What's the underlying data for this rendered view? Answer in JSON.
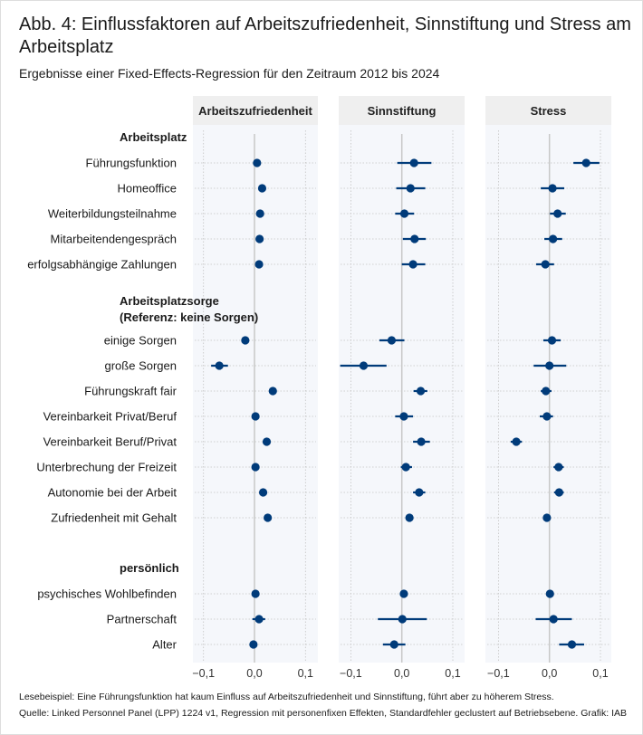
{
  "title": "Abb. 4: Einflussfaktoren auf Arbeitszufriedenheit, Sinnstiftung und Stress am Arbeitsplatz",
  "subtitle": "Ergebnisse einer Fixed-Effects-Regression für den Zeitraum 2012 bis 2024",
  "footer": {
    "example": "Lesebeispiel: Eine Führungsfunktion hat kaum Einfluss auf Arbeitszufriedenheit und Sinnstiftung, führt aber zu höherem Stress.",
    "source": "Quelle: Linked Personnel Panel (LPP) 1224 v1, Regression mit personenfixen Effekten, Standardfehler geclustert auf Betriebsebene. Grafik: IAB"
  },
  "colors": {
    "point": "#003b7a",
    "panel_bg": "#f5f7fb",
    "header_bg": "#efefef",
    "zero_line": "#c8c8c8"
  },
  "chart_data": {
    "type": "scatter",
    "subtype": "coefficient-plot",
    "xlim": [
      -0.12,
      0.125
    ],
    "xticks": [
      -0.1,
      0.0,
      0.1
    ],
    "xtick_labels": [
      "−0,1",
      "0,0",
      "0,1"
    ],
    "groups": [
      {
        "label": "Arbeitsplatz",
        "row": 0
      },
      {
        "label": "Arbeitsplatzsorge\n(Referenz: keine Sorgen)",
        "row": 6.5
      },
      {
        "label": "persönlich",
        "row": 17
      }
    ],
    "rows": [
      {
        "label": "Führungsfunktion",
        "row": 1
      },
      {
        "label": "Homeoffice",
        "row": 2
      },
      {
        "label": "Weiterbildungsteilnahme",
        "row": 3
      },
      {
        "label": "Mitarbeitendengespräch",
        "row": 4
      },
      {
        "label": "erfolgsabhängige Zahlungen",
        "row": 5
      },
      {
        "label": "einige Sorgen",
        "row": 8
      },
      {
        "label": "große Sorgen",
        "row": 9
      },
      {
        "label": "Führungskraft fair",
        "row": 10
      },
      {
        "label": "Vereinbarkeit Privat/Beruf",
        "row": 11
      },
      {
        "label": "Vereinbarkeit Beruf/Privat",
        "row": 12
      },
      {
        "label": "Unterbrechung der Freizeit",
        "row": 13
      },
      {
        "label": "Autonomie bei der Arbeit",
        "row": 14
      },
      {
        "label": "Zufriedenheit mit Gehalt",
        "row": 15
      },
      {
        "label": "psychisches Wohlbefinden",
        "row": 18
      },
      {
        "label": "Partnerschaft",
        "row": 19
      },
      {
        "label": "Alter",
        "row": 20
      }
    ],
    "series": [
      {
        "name": "Arbeitszufriedenheit",
        "estimates": [
          0.005,
          0.015,
          0.011,
          0.01,
          0.009,
          -0.018,
          -0.069,
          0.036,
          0.002,
          0.024,
          0.002,
          0.017,
          0.026,
          0.002,
          0.009,
          -0.002
        ],
        "ci_low": [
          0.002,
          0.011,
          0.008,
          0.007,
          0.006,
          -0.021,
          -0.085,
          0.033,
          -0.001,
          0.021,
          -0.001,
          0.014,
          0.023,
          -0.001,
          -0.004,
          -0.005
        ],
        "ci_high": [
          0.008,
          0.019,
          0.014,
          0.013,
          0.012,
          -0.015,
          -0.052,
          0.039,
          0.005,
          0.027,
          0.005,
          0.02,
          0.029,
          0.005,
          0.021,
          0.001
        ]
      },
      {
        "name": "Sinnstiftung",
        "estimates": [
          0.024,
          0.017,
          0.005,
          0.025,
          0.022,
          -0.02,
          -0.075,
          0.037,
          0.004,
          0.038,
          0.008,
          0.034,
          0.015,
          0.004,
          0.001,
          -0.015
        ],
        "ci_low": [
          -0.009,
          -0.011,
          -0.013,
          0.002,
          0.0,
          -0.044,
          -0.121,
          0.023,
          -0.013,
          0.022,
          -0.002,
          0.022,
          0.012,
          0.001,
          -0.047,
          -0.037
        ],
        "ci_high": [
          0.058,
          0.046,
          0.024,
          0.047,
          0.046,
          0.005,
          -0.03,
          0.05,
          0.022,
          0.055,
          0.02,
          0.046,
          0.018,
          0.007,
          0.049,
          0.007
        ]
      },
      {
        "name": "Stress",
        "estimates": [
          0.072,
          0.006,
          0.016,
          0.007,
          -0.008,
          0.005,
          0.0,
          -0.007,
          -0.005,
          -0.065,
          0.018,
          0.019,
          -0.005,
          0.001,
          0.008,
          0.044
        ],
        "ci_low": [
          0.047,
          -0.017,
          0.001,
          -0.01,
          -0.026,
          -0.012,
          -0.031,
          -0.017,
          -0.019,
          -0.076,
          0.008,
          0.009,
          -0.008,
          -0.002,
          -0.027,
          0.019
        ],
        "ci_high": [
          0.098,
          0.029,
          0.032,
          0.025,
          0.009,
          0.022,
          0.033,
          0.004,
          0.007,
          -0.054,
          0.028,
          0.028,
          -0.002,
          0.004,
          0.044,
          0.068
        ]
      }
    ]
  }
}
